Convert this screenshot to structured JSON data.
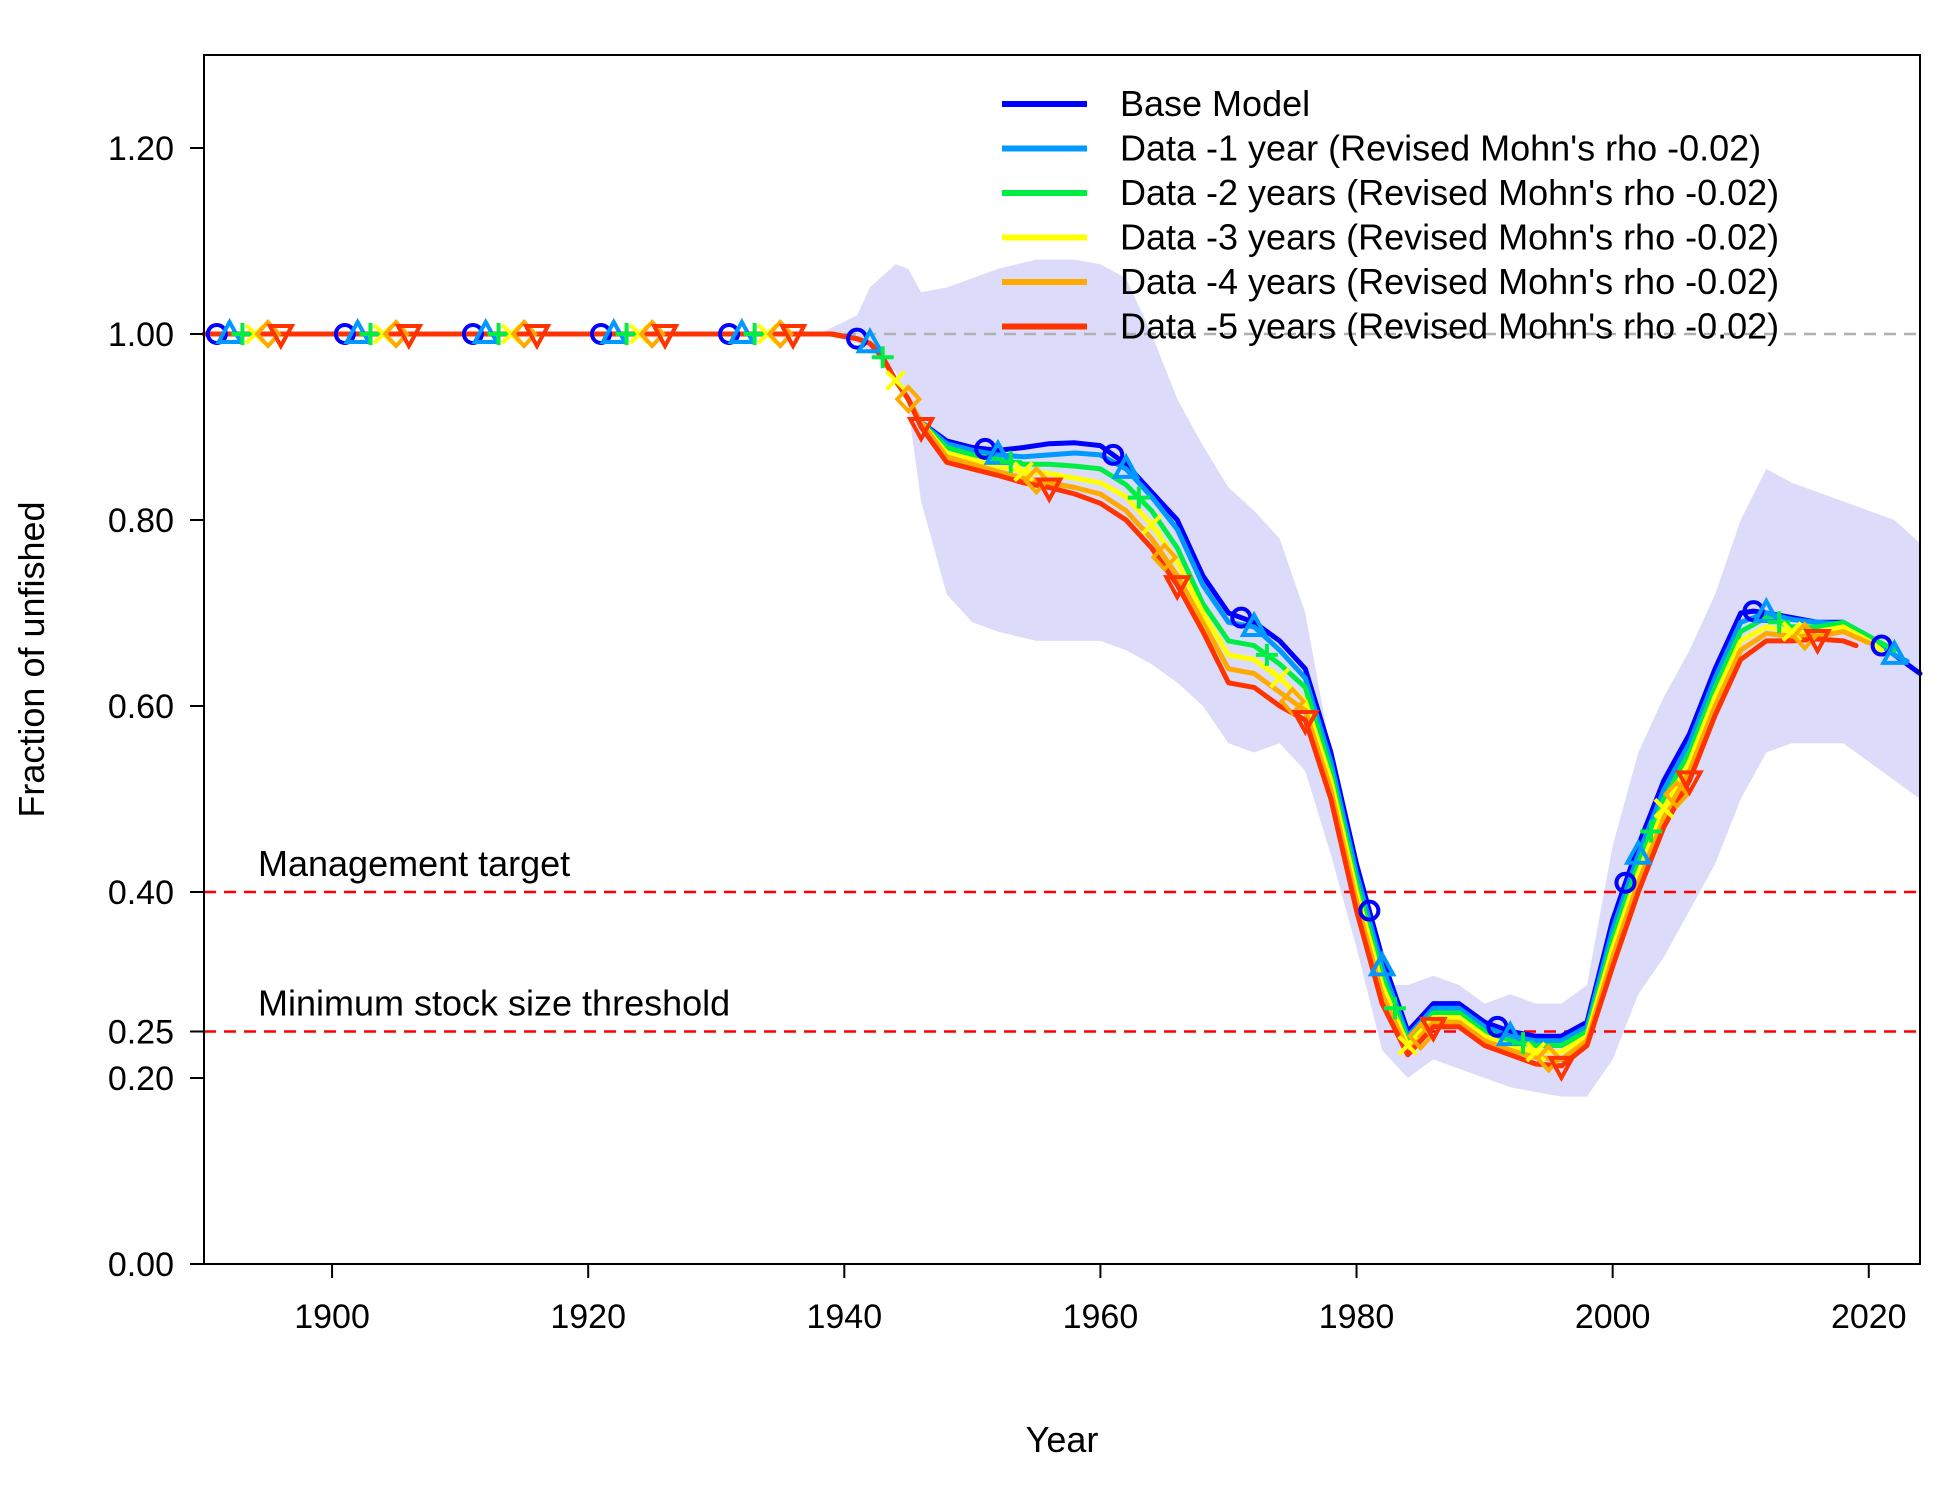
{
  "chart_data": {
    "type": "line",
    "title": "",
    "xlabel": "Year",
    "ylabel": "Fraction of unfished",
    "xlim": [
      1890,
      2024
    ],
    "ylim": [
      0,
      1.3
    ],
    "x_ticks": [
      1900,
      1920,
      1940,
      1960,
      1980,
      2000,
      2020
    ],
    "x_tick_labels": [
      "1900",
      "1920",
      "1940",
      "1960",
      "1980",
      "2000",
      "2020"
    ],
    "y_ticks": [
      0,
      0.2,
      0.25,
      0.4,
      0.6,
      0.8,
      1.0,
      1.2
    ],
    "y_tick_labels": [
      "0.00",
      "0.20",
      "0.25",
      "0.40",
      "0.60",
      "0.80",
      "1.00",
      "1.20"
    ],
    "grid": false,
    "legend_position": "top-right",
    "reference_lines": [
      {
        "y": 1.0,
        "label": "",
        "color": "#b0b0b0",
        "style": "dashed"
      },
      {
        "y": 0.4,
        "label": "Management target",
        "color": "#ff0000",
        "style": "dashed"
      },
      {
        "y": 0.25,
        "label": "Minimum stock size threshold",
        "color": "#ff0000",
        "style": "dashed"
      }
    ],
    "confidence_band": {
      "color": "#dcdcfa",
      "x": [
        1890,
        1938,
        1941,
        1942,
        1944,
        1945,
        1946,
        1948,
        1950,
        1952,
        1955,
        1958,
        1960,
        1962,
        1964,
        1966,
        1968,
        1970,
        1972,
        1974,
        1976,
        1978,
        1980,
        1982,
        1984,
        1986,
        1988,
        1990,
        1992,
        1994,
        1996,
        1998,
        2000,
        2002,
        2004,
        2006,
        2008,
        2010,
        2012,
        2014,
        2016,
        2018,
        2020,
        2022,
        2024
      ],
      "upper": [
        1.0,
        1.0,
        1.02,
        1.05,
        1.075,
        1.07,
        1.045,
        1.05,
        1.06,
        1.07,
        1.08,
        1.08,
        1.075,
        1.06,
        1.0,
        0.93,
        0.88,
        0.835,
        0.81,
        0.78,
        0.7,
        0.55,
        0.42,
        0.3,
        0.3,
        0.31,
        0.3,
        0.28,
        0.29,
        0.28,
        0.28,
        0.3,
        0.45,
        0.55,
        0.61,
        0.66,
        0.72,
        0.8,
        0.855,
        0.84,
        0.83,
        0.82,
        0.81,
        0.8,
        0.775
      ],
      "lower": [
        1.0,
        1.0,
        0.99,
        0.98,
        0.96,
        0.92,
        0.82,
        0.72,
        0.69,
        0.68,
        0.67,
        0.67,
        0.67,
        0.66,
        0.645,
        0.625,
        0.6,
        0.56,
        0.55,
        0.56,
        0.53,
        0.44,
        0.34,
        0.23,
        0.2,
        0.22,
        0.21,
        0.2,
        0.19,
        0.185,
        0.18,
        0.18,
        0.22,
        0.29,
        0.33,
        0.38,
        0.43,
        0.5,
        0.55,
        0.56,
        0.56,
        0.56,
        0.54,
        0.52,
        0.5
      ]
    },
    "series": [
      {
        "name": "Base Model",
        "color": "#0000ff",
        "marker": "circle",
        "x": [
          1890,
          1939,
          1941,
          1942,
          1943,
          1944,
          1945,
          1946,
          1948,
          1950,
          1952,
          1954,
          1956,
          1958,
          1960,
          1962,
          1964,
          1966,
          1968,
          1970,
          1972,
          1974,
          1976,
          1978,
          1980,
          1982,
          1984,
          1986,
          1988,
          1990,
          1992,
          1994,
          1996,
          1998,
          2000,
          2002,
          2004,
          2006,
          2008,
          2010,
          2011,
          2012,
          2014,
          2016,
          2018,
          2020,
          2022,
          2024
        ],
        "y": [
          1.0,
          1.0,
          0.995,
          0.99,
          0.975,
          0.95,
          0.93,
          0.905,
          0.885,
          0.878,
          0.875,
          0.878,
          0.882,
          0.883,
          0.88,
          0.86,
          0.83,
          0.8,
          0.74,
          0.7,
          0.69,
          0.67,
          0.64,
          0.55,
          0.43,
          0.33,
          0.25,
          0.28,
          0.28,
          0.26,
          0.25,
          0.245,
          0.245,
          0.26,
          0.37,
          0.45,
          0.52,
          0.57,
          0.64,
          0.7,
          0.702,
          0.7,
          0.695,
          0.69,
          0.69,
          0.675,
          0.655,
          0.635
        ]
      },
      {
        "name": "Data -1 year (Revised Mohn's rho -0.02)",
        "color": "#0099ff",
        "marker": "triangle-up",
        "x": [
          1890,
          1939,
          1941,
          1942,
          1943,
          1944,
          1945,
          1946,
          1948,
          1950,
          1952,
          1954,
          1956,
          1958,
          1960,
          1962,
          1964,
          1966,
          1968,
          1970,
          1972,
          1974,
          1976,
          1978,
          1980,
          1982,
          1984,
          1986,
          1988,
          1990,
          1992,
          1994,
          1996,
          1998,
          2000,
          2002,
          2004,
          2006,
          2008,
          2010,
          2012,
          2014,
          2016,
          2018,
          2020,
          2022,
          2023
        ],
        "y": [
          1.0,
          1.0,
          0.995,
          0.99,
          0.975,
          0.95,
          0.93,
          0.905,
          0.882,
          0.875,
          0.87,
          0.868,
          0.87,
          0.872,
          0.87,
          0.855,
          0.825,
          0.79,
          0.73,
          0.69,
          0.685,
          0.66,
          0.63,
          0.54,
          0.42,
          0.32,
          0.245,
          0.275,
          0.275,
          0.255,
          0.245,
          0.24,
          0.24,
          0.255,
          0.36,
          0.44,
          0.51,
          0.56,
          0.63,
          0.69,
          0.7,
          0.693,
          0.69,
          0.688,
          0.675,
          0.655,
          0.648
        ]
      },
      {
        "name": "Data -2 years (Revised Mohn's rho -0.02)",
        "color": "#00ee44",
        "marker": "plus",
        "x": [
          1890,
          1939,
          1941,
          1942,
          1943,
          1944,
          1945,
          1946,
          1948,
          1950,
          1952,
          1954,
          1956,
          1958,
          1960,
          1962,
          1964,
          1966,
          1968,
          1970,
          1972,
          1974,
          1976,
          1978,
          1980,
          1982,
          1984,
          1986,
          1988,
          1990,
          1992,
          1994,
          1996,
          1998,
          2000,
          2002,
          2004,
          2006,
          2008,
          2010,
          2012,
          2014,
          2016,
          2018,
          2020,
          2022
        ],
        "y": [
          1.0,
          1.0,
          0.995,
          0.99,
          0.975,
          0.95,
          0.93,
          0.905,
          0.878,
          0.87,
          0.865,
          0.86,
          0.86,
          0.858,
          0.855,
          0.838,
          0.81,
          0.77,
          0.71,
          0.67,
          0.665,
          0.645,
          0.62,
          0.53,
          0.41,
          0.31,
          0.24,
          0.27,
          0.27,
          0.25,
          0.24,
          0.235,
          0.235,
          0.25,
          0.35,
          0.43,
          0.5,
          0.55,
          0.62,
          0.68,
          0.695,
          0.685,
          0.685,
          0.69,
          0.675,
          0.66
        ]
      },
      {
        "name": "Data -3 years (Revised Mohn's rho -0.02)",
        "color": "#ffff00",
        "marker": "cross",
        "x": [
          1890,
          1939,
          1941,
          1942,
          1943,
          1944,
          1945,
          1946,
          1948,
          1950,
          1952,
          1954,
          1956,
          1958,
          1960,
          1962,
          1964,
          1966,
          1968,
          1970,
          1972,
          1974,
          1976,
          1978,
          1980,
          1982,
          1984,
          1986,
          1988,
          1990,
          1992,
          1994,
          1996,
          1998,
          2000,
          2002,
          2004,
          2006,
          2008,
          2010,
          2012,
          2014,
          2016,
          2018,
          2020,
          2021
        ],
        "y": [
          1.0,
          1.0,
          0.995,
          0.99,
          0.975,
          0.95,
          0.93,
          0.905,
          0.872,
          0.865,
          0.858,
          0.852,
          0.85,
          0.845,
          0.84,
          0.825,
          0.795,
          0.755,
          0.7,
          0.655,
          0.65,
          0.63,
          0.605,
          0.52,
          0.4,
          0.3,
          0.235,
          0.265,
          0.265,
          0.245,
          0.235,
          0.228,
          0.228,
          0.245,
          0.34,
          0.42,
          0.49,
          0.54,
          0.61,
          0.67,
          0.685,
          0.68,
          0.68,
          0.685,
          0.67,
          0.66
        ]
      },
      {
        "name": "Data -4 years (Revised Mohn's rho -0.02)",
        "color": "#ffaa00",
        "marker": "diamond",
        "x": [
          1890,
          1939,
          1941,
          1942,
          1943,
          1944,
          1945,
          1946,
          1948,
          1950,
          1952,
          1954,
          1956,
          1958,
          1960,
          1962,
          1964,
          1966,
          1968,
          1970,
          1972,
          1974,
          1976,
          1978,
          1980,
          1982,
          1984,
          1986,
          1988,
          1990,
          1992,
          1994,
          1996,
          1998,
          2000,
          2002,
          2004,
          2006,
          2008,
          2010,
          2012,
          2014,
          2016,
          2018,
          2020
        ],
        "y": [
          1.0,
          1.0,
          0.995,
          0.99,
          0.975,
          0.95,
          0.93,
          0.905,
          0.868,
          0.86,
          0.852,
          0.845,
          0.84,
          0.835,
          0.828,
          0.81,
          0.78,
          0.74,
          0.69,
          0.64,
          0.635,
          0.615,
          0.595,
          0.51,
          0.39,
          0.29,
          0.23,
          0.26,
          0.26,
          0.24,
          0.23,
          0.222,
          0.22,
          0.24,
          0.33,
          0.41,
          0.48,
          0.53,
          0.6,
          0.66,
          0.678,
          0.675,
          0.675,
          0.68,
          0.668
        ]
      },
      {
        "name": "Data -5 years (Revised Mohn's rho -0.02)",
        "color": "#ff3300",
        "marker": "triangle-down",
        "x": [
          1890,
          1939,
          1941,
          1942,
          1943,
          1944,
          1945,
          1946,
          1948,
          1950,
          1952,
          1954,
          1956,
          1958,
          1960,
          1962,
          1964,
          1966,
          1968,
          1970,
          1972,
          1974,
          1976,
          1978,
          1980,
          1982,
          1984,
          1986,
          1988,
          1990,
          1992,
          1994,
          1996,
          1998,
          2000,
          2002,
          2004,
          2006,
          2008,
          2010,
          2012,
          2014,
          2016,
          2018,
          2019
        ],
        "y": [
          1.0,
          1.0,
          0.995,
          0.99,
          0.975,
          0.95,
          0.93,
          0.9,
          0.862,
          0.855,
          0.848,
          0.84,
          0.835,
          0.828,
          0.818,
          0.8,
          0.77,
          0.73,
          0.68,
          0.625,
          0.62,
          0.6,
          0.585,
          0.5,
          0.38,
          0.28,
          0.225,
          0.255,
          0.255,
          0.235,
          0.225,
          0.215,
          0.213,
          0.235,
          0.32,
          0.4,
          0.47,
          0.52,
          0.59,
          0.65,
          0.67,
          0.67,
          0.672,
          0.67,
          0.665
        ]
      }
    ]
  }
}
